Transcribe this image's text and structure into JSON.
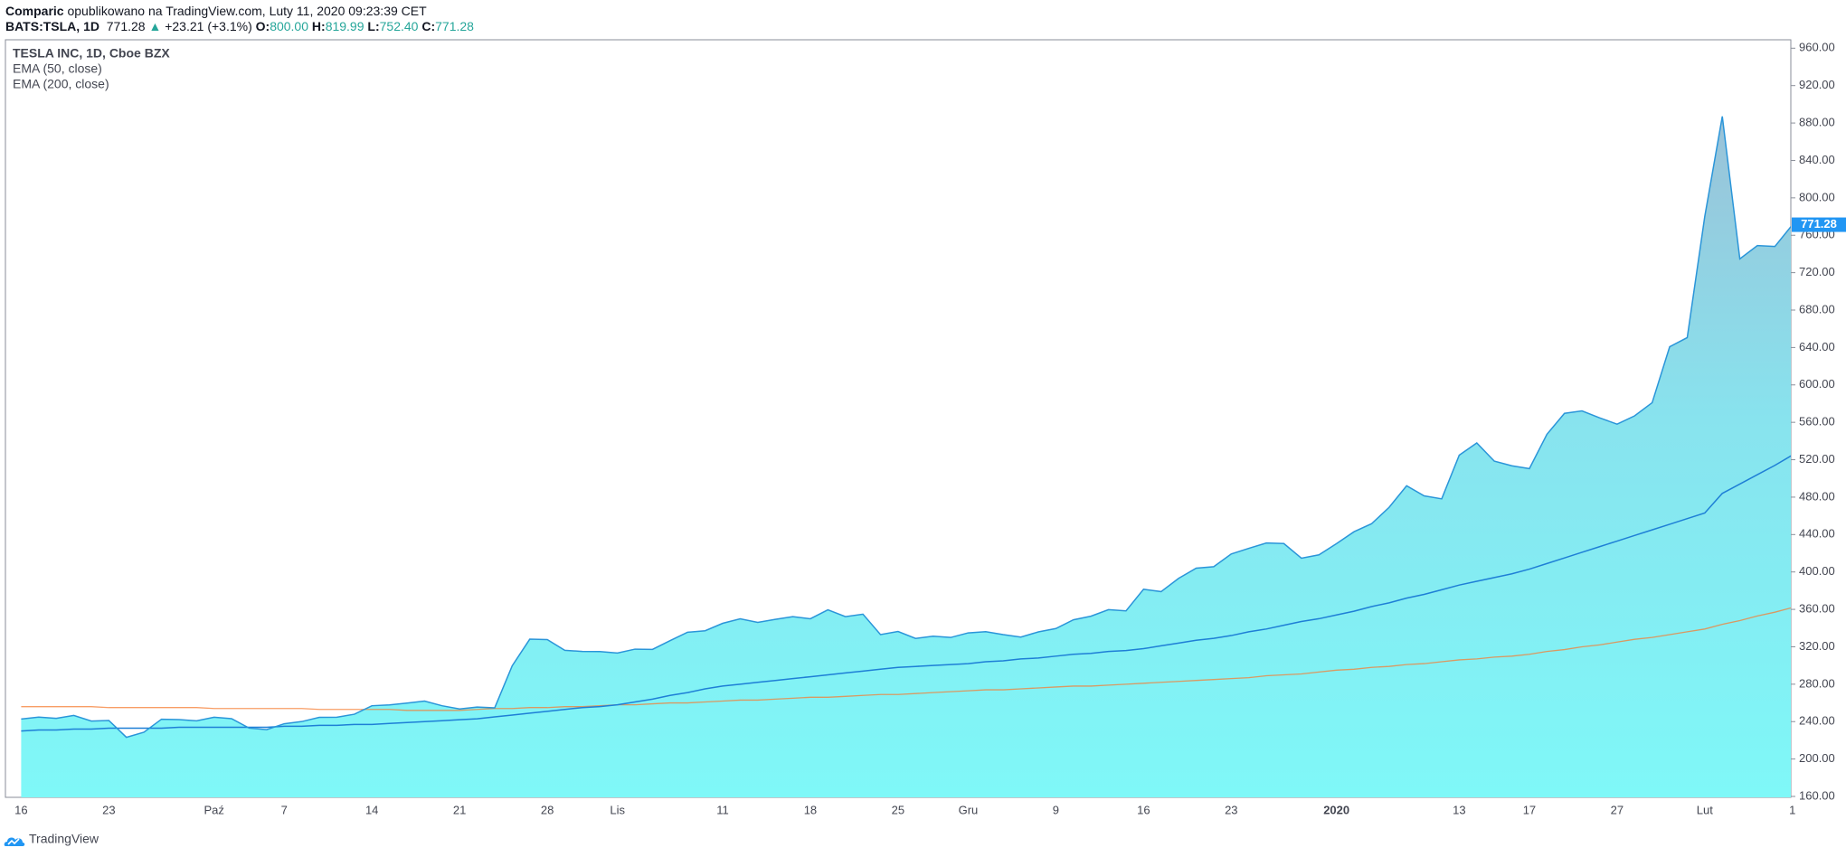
{
  "header": {
    "publisher": "Comparic",
    "published": "opublikowano na TradingView.com, Luty 11, 2020 09:23:39 CET",
    "symbol": "BATS:TSLA, 1D",
    "last": "771.28",
    "arrow": "▲",
    "change": "+23.21 (+3.1%)",
    "ohlc": [
      {
        "label": "O:",
        "value": "800.00"
      },
      {
        "label": "H:",
        "value": "819.99"
      },
      {
        "label": "L:",
        "value": "752.40"
      },
      {
        "label": "C:",
        "value": "771.28"
      }
    ]
  },
  "footer": {
    "brand": "TradingView"
  },
  "chart_data": {
    "type": "area",
    "categories": [
      "16",
      null,
      null,
      null,
      null,
      "23",
      null,
      null,
      null,
      null,
      null,
      "Paź",
      null,
      null,
      null,
      "7",
      null,
      null,
      null,
      null,
      "14",
      null,
      null,
      null,
      null,
      "21",
      null,
      null,
      null,
      null,
      "28",
      null,
      null,
      null,
      "Lis",
      null,
      null,
      null,
      null,
      null,
      "11",
      null,
      null,
      null,
      null,
      "18",
      null,
      null,
      null,
      null,
      "25",
      null,
      null,
      null,
      "Gru",
      null,
      null,
      null,
      null,
      "9",
      null,
      null,
      null,
      null,
      "16",
      null,
      null,
      null,
      null,
      "23",
      null,
      null,
      null,
      null,
      null,
      "2020",
      null,
      null,
      null,
      null,
      null,
      null,
      "13",
      null,
      null,
      null,
      "17",
      null,
      null,
      null,
      null,
      "27",
      null,
      null,
      null,
      null,
      "Lut",
      null,
      null,
      null,
      null,
      "1"
    ],
    "series": [
      {
        "name": "TESLA INC, 1D, Cboe BZX",
        "color": "#2a95d9",
        "values": [
          242.81,
          244.79,
          243.49,
          246.6,
          240.62,
          241.23,
          223.21,
          228.7,
          242.56,
          242.13,
          240.87,
          244.69,
          243.13,
          233.03,
          231.43,
          237.72,
          240.05,
          244.53,
          244.74,
          247.89,
          256.96,
          257.89,
          259.75,
          261.97,
          256.95,
          253.5,
          255.58,
          254.68,
          299.68,
          328.13,
          327.71,
          316.22,
          315.01,
          314.92,
          313.31,
          317.47,
          317.22,
          326.58,
          335.54,
          337.14,
          345.09,
          349.93,
          346.11,
          349.35,
          352.17,
          349.99,
          359.52,
          352.22,
          354.83,
          333.04,
          336.34,
          328.92,
          331.29,
          329.94,
          334.87,
          336.2,
          333.03,
          330.37,
          335.89,
          339.53,
          348.84,
          352.7,
          359.68,
          358.39,
          381.5,
          378.99,
          393.15,
          404.04,
          405.59,
          419.22,
          425.25,
          430.94,
          430.38,
          414.7,
          418.33,
          430.26,
          443.01,
          451.54,
          469.06,
          492.14,
          481.34,
          478.15,
          524.86,
          537.92,
          518.5,
          513.49,
          510.5,
          547.2,
          569.56,
          572.2,
          564.82,
          558.02,
          566.9,
          580.99,
          640.81,
          650.57,
          780,
          887.06,
          734.7,
          748.96,
          748.07,
          771.28
        ]
      },
      {
        "name": "EMA (50, close)",
        "color": "#1e7fd6",
        "values": [
          230,
          231,
          231,
          232,
          232,
          233,
          233,
          233,
          233,
          234,
          234,
          234,
          234,
          234,
          234,
          235,
          235,
          236,
          236,
          237,
          237,
          238,
          239,
          240,
          241,
          242,
          243,
          245,
          247,
          249,
          251,
          253,
          255,
          256,
          258,
          261,
          264,
          268,
          271,
          275,
          278,
          280,
          282,
          284,
          286,
          288,
          290,
          292,
          294,
          296,
          298,
          299,
          300,
          301,
          302,
          304,
          305,
          307,
          308,
          310,
          312,
          313,
          315,
          316,
          318,
          321,
          324,
          327,
          329,
          332,
          336,
          339,
          343,
          347,
          350,
          354,
          358,
          363,
          367,
          372,
          376,
          381,
          386,
          390,
          394,
          398,
          403,
          409,
          415,
          421,
          427,
          433,
          439,
          445,
          451,
          457,
          463,
          484,
          494,
          504,
          514,
          525
        ]
      },
      {
        "name": "EMA (200, close)",
        "color": "#f57c32",
        "values": [
          256,
          256,
          256,
          256,
          256,
          255,
          255,
          255,
          255,
          255,
          255,
          254,
          254,
          254,
          254,
          254,
          254,
          253,
          253,
          253,
          253,
          253,
          252,
          252,
          252,
          252,
          253,
          254,
          254,
          255,
          255,
          256,
          256,
          257,
          258,
          258,
          259,
          260,
          260,
          261,
          262,
          263,
          263,
          264,
          265,
          266,
          266,
          267,
          268,
          269,
          269,
          270,
          271,
          272,
          273,
          274,
          274,
          275,
          276,
          277,
          278,
          278,
          279,
          280,
          281,
          282,
          283,
          284,
          285,
          286,
          287,
          289,
          290,
          291,
          293,
          295,
          296,
          298,
          299,
          301,
          302,
          304,
          306,
          307,
          309,
          310,
          312,
          315,
          317,
          320,
          322,
          325,
          328,
          330,
          333,
          336,
          339,
          344,
          348,
          353,
          357,
          362
        ]
      }
    ],
    "ylim": [
      160,
      969
    ],
    "yticks": [
      {
        "value": 160,
        "label": "160.00"
      },
      {
        "value": 200,
        "label": "200.00"
      },
      {
        "value": 240,
        "label": "240.00"
      },
      {
        "value": 280,
        "label": "280.00"
      },
      {
        "value": 320,
        "label": "320.00"
      },
      {
        "value": 360,
        "label": "360.00"
      },
      {
        "value": 400,
        "label": "400.00"
      },
      {
        "value": 440,
        "label": "440.00"
      },
      {
        "value": 480,
        "label": "480.00"
      },
      {
        "value": 520,
        "label": "520.00"
      },
      {
        "value": 560,
        "label": "560.00"
      },
      {
        "value": 600,
        "label": "600.00"
      },
      {
        "value": 640,
        "label": "640.00"
      },
      {
        "value": 680,
        "label": "680.00"
      },
      {
        "value": 720,
        "label": "720.00"
      },
      {
        "value": 760,
        "label": "760.00"
      },
      {
        "value": 800,
        "label": "800.00"
      },
      {
        "value": 840,
        "label": "840.00"
      },
      {
        "value": 880,
        "label": "880.00"
      },
      {
        "value": 920,
        "label": "920.00"
      },
      {
        "value": 960,
        "label": "960.00"
      }
    ],
    "area_gradient": [
      "#9fb9d2",
      "#88e3ee",
      "#7ff8f8"
    ],
    "grid": false
  }
}
